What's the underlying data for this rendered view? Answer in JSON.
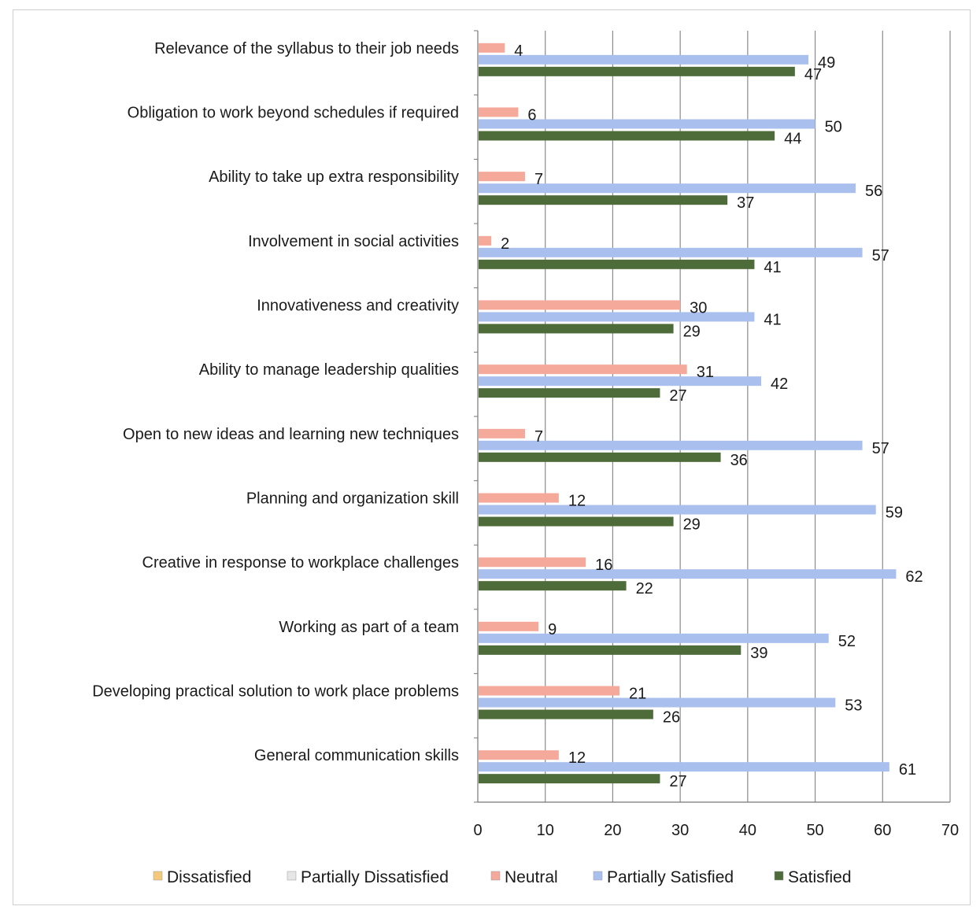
{
  "chart_data": {
    "type": "bar",
    "orientation": "horizontal",
    "categories": [
      "Relevance of the syllabus to their job needs",
      "Obligation to work beyond schedules if required",
      "Ability to take up extra responsibility",
      "Involvement in social activities",
      "Innovativeness and creativity",
      "Ability to manage leadership qualities",
      "Open to new ideas and learning new techniques",
      "Planning and organization skill",
      "Creative in response to workplace challenges",
      "Working as part of a team",
      "Developing practical solution to work place problems",
      "General communication skills"
    ],
    "series": [
      {
        "name": "Dissatisfied",
        "color": "#f5c97a",
        "values": [
          null,
          null,
          null,
          null,
          null,
          null,
          null,
          null,
          null,
          null,
          null,
          null
        ]
      },
      {
        "name": "Partially Dissatisfied",
        "color": "#e6e6e6",
        "values": [
          null,
          null,
          null,
          null,
          null,
          null,
          null,
          null,
          null,
          null,
          null,
          null
        ]
      },
      {
        "name": "Neutral",
        "color": "#f4a99a",
        "values": [
          4,
          6,
          7,
          2,
          30,
          31,
          7,
          12,
          16,
          9,
          21,
          12
        ]
      },
      {
        "name": "Partially Satisfied",
        "color": "#a9bfee",
        "values": [
          49,
          50,
          56,
          57,
          41,
          42,
          57,
          59,
          62,
          52,
          53,
          61
        ]
      },
      {
        "name": "Satisfied",
        "color": "#4e6b3a",
        "values": [
          47,
          44,
          37,
          41,
          29,
          27,
          36,
          29,
          22,
          39,
          26,
          27
        ]
      }
    ],
    "xticks": [
      "0",
      "10",
      "20",
      "30",
      "40",
      "50",
      "60",
      "70"
    ],
    "xlim": [
      0,
      70
    ],
    "grid": true,
    "legend": "bottom"
  }
}
